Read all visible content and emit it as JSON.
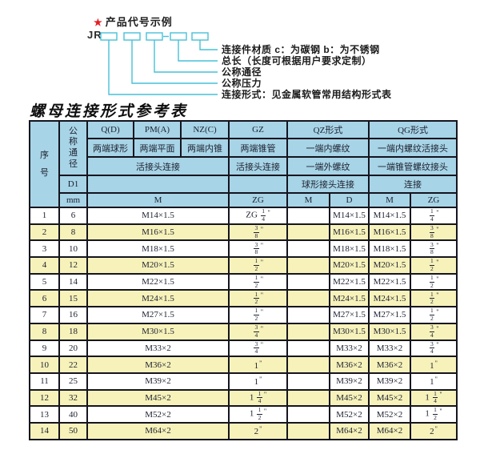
{
  "diagram": {
    "star_icon": "★",
    "heading": "产品代号示例",
    "prefix": "JR",
    "labels": [
      "连接件材质  c：为碳钢  b：为不锈钢",
      "总长（长度可根据用户要求定制）",
      "公称通径",
      "公称压力",
      "连接形式：见金属软管常用结构形式表"
    ]
  },
  "table": {
    "title": "螺母连接形式参考表",
    "header_rows": [
      [
        {
          "t": "序号",
          "rs": 5,
          "v": true,
          "tall": true
        },
        {
          "t": "公称通径",
          "rs": 3,
          "v": true
        },
        {
          "t": "Q(D)"
        },
        {
          "t": "PM(A)"
        },
        {
          "t": "NZ(C)"
        },
        {
          "t": "GZ"
        },
        {
          "t": "QZ形式",
          "cs": 2
        },
        {
          "t": "QG形式",
          "cs": 2
        }
      ],
      [
        {
          "t": "两端球形"
        },
        {
          "t": "两端平面"
        },
        {
          "t": "两端内锥"
        },
        {
          "t": "两端锥管"
        },
        {
          "t": "一端内螺纹",
          "cs": 2
        },
        {
          "t": "一端内螺纹活接头",
          "cs": 2
        }
      ],
      [
        {
          "t": "活接头连接",
          "cs": 3
        },
        {
          "t": "活接头连接"
        },
        {
          "t": "一端外螺纹",
          "cs": 2
        },
        {
          "t": "一端锥管螺纹接头",
          "cs": 2
        }
      ],
      [
        {
          "t": "D1"
        },
        {
          "t": "",
          "cs": 3
        },
        {
          "t": ""
        },
        {
          "t": "球形接头连接",
          "cs": 2
        },
        {
          "t": "连接",
          "cs": 2
        }
      ],
      [
        {
          "t": "mm"
        },
        {
          "t": "M",
          "cs": 3
        },
        {
          "t": "ZG"
        },
        {
          "t": "M"
        },
        {
          "t": "D"
        },
        {
          "t": "M"
        },
        {
          "t": "ZG"
        }
      ]
    ],
    "rows": [
      [
        "1",
        "6",
        "M14×1.5",
        "ZG 1/4\"",
        "",
        "M14×1.5",
        "M14×1.5",
        "1/4\""
      ],
      [
        "2",
        "8",
        "M16×1.5",
        "3/8\"",
        "",
        "M16×1.5",
        "M16×1.5",
        "3/8\""
      ],
      [
        "3",
        "10",
        "M18×1.5",
        "3/8\"",
        "",
        "M18×1.5",
        "M18×1.5",
        "3/8\""
      ],
      [
        "4",
        "12",
        "M20×1.5",
        "1/2\"",
        "",
        "M20×1.5",
        "M20×1.5",
        "1/2\""
      ],
      [
        "5",
        "14",
        "M22×1.5",
        "1/2\"",
        "",
        "M22×1.5",
        "M22×1.5",
        "1/2\""
      ],
      [
        "6",
        "15",
        "M24×1.5",
        "1/2\"",
        "",
        "M24×1.5",
        "M24×1.5",
        "1/2\""
      ],
      [
        "7",
        "16",
        "M27×1.5",
        "1/2\"",
        "",
        "M27×1.5",
        "M27×1.5",
        "1/2\""
      ],
      [
        "8",
        "18",
        "M30×1.5",
        "3/4\"",
        "",
        "M30×1.5",
        "M30×1.5",
        "3/4\""
      ],
      [
        "9",
        "20",
        "M33×2",
        "3/4\"",
        "",
        "M33×2",
        "M33×2",
        "3/4\""
      ],
      [
        "10",
        "22",
        "M36×2",
        "1\"",
        "",
        "M36×2",
        "M36×2",
        "1\""
      ],
      [
        "11",
        "25",
        "M39×2",
        "1\"",
        "",
        "M39×2",
        "M39×2",
        "1\""
      ],
      [
        "12",
        "32",
        "M45×2",
        "1 1/4\"",
        "",
        "M45×2",
        "M45×2",
        "1 1/4\""
      ],
      [
        "13",
        "40",
        "M52×2",
        "1 1/2\"",
        "",
        "M52×2",
        "M52×2",
        "1 1/2\""
      ],
      [
        "14",
        "50",
        "M64×2",
        "2\"",
        "",
        "M64×2",
        "M64×2",
        "2\""
      ]
    ]
  },
  "colors": {
    "header_bg": "#a7d4e6",
    "stripe_bg": "#f7f2ba",
    "leader_cyan": "#47c0d8",
    "star_red": "#e31e24",
    "border": "#15151f"
  }
}
